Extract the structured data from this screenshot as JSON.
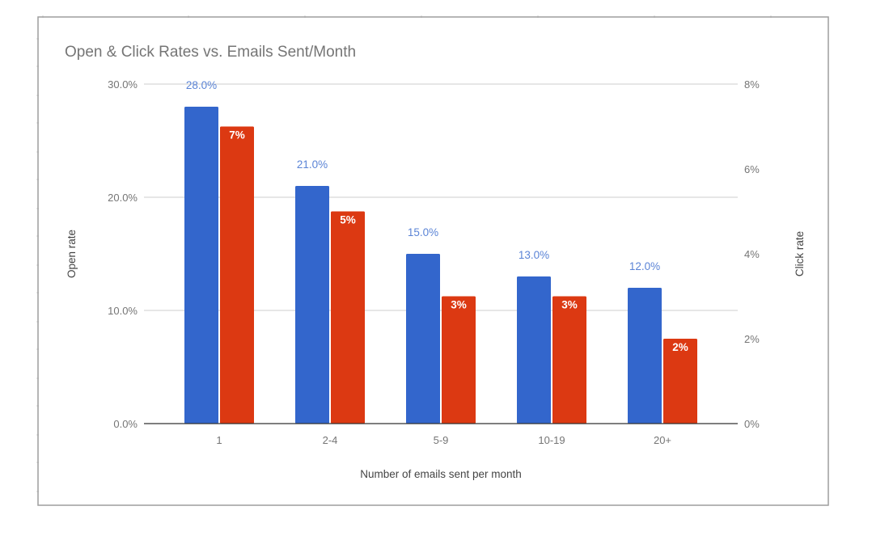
{
  "chart_data": {
    "type": "bar",
    "title": "Open & Click Rates vs. Emails Sent/Month",
    "xlabel": "Number of emails sent per month",
    "ylabel": "Open rate",
    "y2label": "Click rate",
    "categories": [
      "1",
      "2-4",
      "5-9",
      "10-19",
      "20+"
    ],
    "series": [
      {
        "name": "Open rate",
        "axis": "left",
        "values": [
          28.0,
          21.0,
          15.0,
          13.0,
          12.0
        ],
        "labels": [
          "28.0%",
          "21.0%",
          "15.0%",
          "13.0%",
          "12.0%"
        ],
        "color": "#3366cc",
        "label_color": "#5b84d6",
        "label_position": "above"
      },
      {
        "name": "Click rate",
        "axis": "right",
        "values": [
          7,
          5,
          3,
          3,
          2
        ],
        "labels": [
          "7%",
          "5%",
          "3%",
          "3%",
          "2%"
        ],
        "color": "#dc3912",
        "label_color": "#ffffff",
        "label_position": "inside-top"
      }
    ],
    "ylim": [
      0,
      30
    ],
    "y2lim": [
      0,
      8
    ],
    "yticks": [
      0,
      10,
      20,
      30
    ],
    "ytick_labels": [
      "0.0%",
      "10.0%",
      "20.0%",
      "30.0%"
    ],
    "y2ticks": [
      0,
      2,
      4,
      6,
      8
    ],
    "y2tick_labels": [
      "0%",
      "2%",
      "4%",
      "6%",
      "8%"
    ],
    "grid": true,
    "legend": "none",
    "colors": {
      "text": "#757575",
      "title": "#757575",
      "gridline": "#cccccc",
      "baseline": "#333333",
      "frame": "#9e9e9e"
    }
  }
}
